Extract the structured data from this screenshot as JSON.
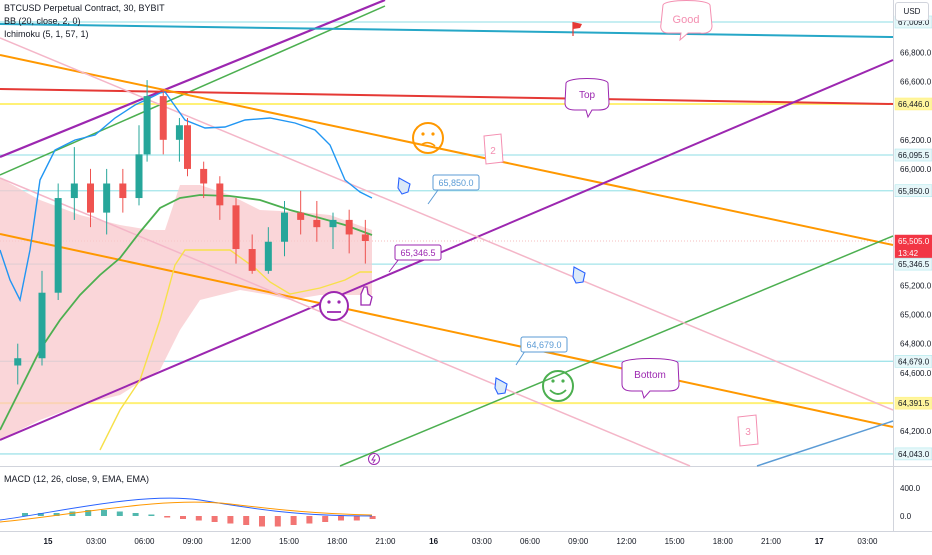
{
  "legend": {
    "symbol": "BTCUSD Perpetual Contract, 30, BYBIT",
    "bb": "BB (20, close, 2, 0)",
    "ichimoku": "Ichimoku (5, 1, 57, 1)",
    "macd": "MACD (12, 26, close, 9, EMA, EMA)"
  },
  "currency_label": "USD",
  "price_axis": {
    "ticks": [
      "66,800.0",
      "66,600.0",
      "66,200.0",
      "66,000.0",
      "65,200.0",
      "65,000.0",
      "64,800.0",
      "64,600.0",
      "64,200.0"
    ],
    "highlighted": [
      {
        "label": "67,009.0",
        "style": "cyan"
      },
      {
        "label": "66,446.0",
        "style": "yellow"
      },
      {
        "label": "66,095.5",
        "style": "cyan"
      },
      {
        "label": "65,850.0",
        "style": "cyan"
      },
      {
        "label": "65,505.0",
        "style": "red"
      },
      {
        "label": "13:42",
        "style": "red"
      },
      {
        "label": "65,346.5",
        "style": "cyan"
      },
      {
        "label": "64,679.0",
        "style": "cyan"
      },
      {
        "label": "64,391.5",
        "style": "yellow"
      },
      {
        "label": "64,043.0",
        "style": "cyan"
      }
    ]
  },
  "macd_axis": {
    "ticks": [
      "400.0",
      "0.0"
    ]
  },
  "time_axis": {
    "ticks": [
      "15",
      "03:00",
      "06:00",
      "09:00",
      "12:00",
      "15:00",
      "18:00",
      "21:00",
      "16",
      "03:00",
      "06:00",
      "09:00",
      "12:00",
      "15:00",
      "18:00",
      "21:00",
      "17",
      "03:00"
    ]
  },
  "chart_data": {
    "type": "candlestick",
    "symbol": "BTCUSD",
    "interval": "30",
    "exchange": "BYBIT",
    "last_price": 65505.0,
    "countdown": "13:42",
    "y_range": [
      63960,
      67160
    ],
    "x_range": [
      "15 00:00",
      "17 04:30"
    ],
    "candles_approx": [
      {
        "t": "14 22:30",
        "o": 64650,
        "h": 64800,
        "l": 64520,
        "c": 64700
      },
      {
        "t": "15 00:00",
        "o": 64700,
        "h": 65300,
        "l": 64650,
        "c": 65150
      },
      {
        "t": "15 01:00",
        "o": 65150,
        "h": 65900,
        "l": 65100,
        "c": 65800
      },
      {
        "t": "15 02:00",
        "o": 65800,
        "h": 66150,
        "l": 65650,
        "c": 65900
      },
      {
        "t": "15 03:00",
        "o": 65900,
        "h": 66000,
        "l": 65600,
        "c": 65700
      },
      {
        "t": "15 04:00",
        "o": 65700,
        "h": 66000,
        "l": 65550,
        "c": 65900
      },
      {
        "t": "15 05:00",
        "o": 65900,
        "h": 66000,
        "l": 65700,
        "c": 65800
      },
      {
        "t": "15 06:00",
        "o": 65800,
        "h": 66300,
        "l": 65750,
        "c": 66100
      },
      {
        "t": "15 06:30",
        "o": 66100,
        "h": 66610,
        "l": 66050,
        "c": 66500
      },
      {
        "t": "15 07:30",
        "o": 66500,
        "h": 66550,
        "l": 66100,
        "c": 66200
      },
      {
        "t": "15 08:30",
        "o": 66200,
        "h": 66350,
        "l": 66050,
        "c": 66300
      },
      {
        "t": "15 09:00",
        "o": 66300,
        "h": 66350,
        "l": 65950,
        "c": 66000
      },
      {
        "t": "15 10:00",
        "o": 66000,
        "h": 66050,
        "l": 65800,
        "c": 65900
      },
      {
        "t": "15 11:00",
        "o": 65900,
        "h": 65950,
        "l": 65650,
        "c": 65750
      },
      {
        "t": "15 12:00",
        "o": 65750,
        "h": 65800,
        "l": 65350,
        "c": 65450
      },
      {
        "t": "15 13:00",
        "o": 65450,
        "h": 65550,
        "l": 65280,
        "c": 65300
      },
      {
        "t": "15 14:00",
        "o": 65300,
        "h": 65600,
        "l": 65280,
        "c": 65500
      },
      {
        "t": "15 15:00",
        "o": 65500,
        "h": 65780,
        "l": 65400,
        "c": 65700
      },
      {
        "t": "15 16:00",
        "o": 65700,
        "h": 65850,
        "l": 65550,
        "c": 65650
      },
      {
        "t": "15 17:00",
        "o": 65650,
        "h": 65780,
        "l": 65500,
        "c": 65600
      },
      {
        "t": "15 18:00",
        "o": 65600,
        "h": 65700,
        "l": 65450,
        "c": 65650
      },
      {
        "t": "15 19:00",
        "o": 65650,
        "h": 65720,
        "l": 65420,
        "c": 65550
      },
      {
        "t": "15 20:00",
        "o": 65550,
        "h": 65650,
        "l": 65350,
        "c": 65505
      }
    ],
    "horizontal_levels": [
      67009.0,
      66446.0,
      66095.5,
      65850.0,
      65346.5,
      64679.0,
      64391.5,
      64043.0
    ],
    "indicators": [
      "Bollinger Bands (20, close, 2, 0)",
      "Ichimoku (5, 1, 57, 1)",
      "MACD (12, 26, close, 9, EMA, EMA)"
    ]
  },
  "annotations": {
    "good": "Good",
    "top": "Top",
    "bottom": "Bottom",
    "two": "2",
    "three": "3",
    "callout_1": "65,850.0",
    "callout_2": "65,346.5",
    "callout_3": "64,679.0"
  },
  "colors": {
    "up": "#26a69a",
    "down": "#ef5350",
    "bb": "#2196f3",
    "ichimoku_base": "#4caf50",
    "ichimoku_span": "#ffeb3b",
    "cloud": "#f8c8cc",
    "orange": "#ff9800",
    "purple": "#9c27b0",
    "pink": "#f4b6c8",
    "red_line": "#e53935",
    "teal_line": "#26a7c7"
  }
}
